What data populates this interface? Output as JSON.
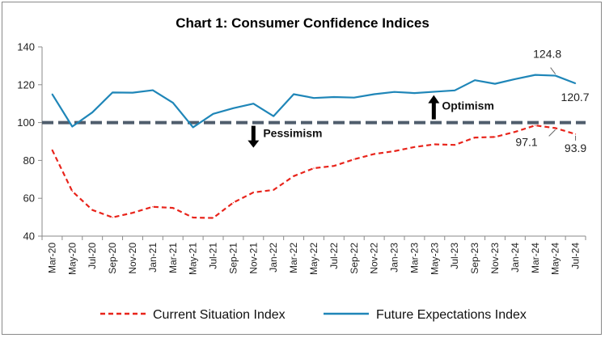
{
  "chart_data": {
    "type": "line",
    "title": "Chart 1: Consumer Confidence Indices",
    "xlabel": "",
    "ylabel": "",
    "ylim": [
      40,
      140
    ],
    "yticks": [
      40,
      60,
      80,
      100,
      120,
      140
    ],
    "grid": false,
    "legend_position": "bottom",
    "x": [
      "Mar-20",
      "May-20",
      "Jul-20",
      "Sep-20",
      "Nov-20",
      "Jan-21",
      "Mar-21",
      "May-21",
      "Jul-21",
      "Sep-21",
      "Nov-21",
      "Jan-22",
      "Mar-22",
      "May-22",
      "Jul-22",
      "Sep-22",
      "Nov-22",
      "Jan-23",
      "Mar-23",
      "May-23",
      "Jul-23",
      "Sep-23",
      "Nov-23",
      "Jan-24",
      "Mar-24",
      "May-24",
      "Jul-24"
    ],
    "series": [
      {
        "name": "Current Situation Index",
        "color": "#e8241b",
        "style": "dashed",
        "values": [
          85.6,
          63.7,
          53.8,
          49.9,
          52.3,
          55.5,
          54.9,
          49.8,
          49.6,
          57.7,
          63.1,
          64.4,
          71.7,
          75.9,
          77.1,
          80.6,
          83.4,
          84.9,
          87.1,
          88.5,
          88.2,
          92.1,
          92.4,
          95.1,
          98.5,
          97.1,
          93.9
        ]
      },
      {
        "name": "Future Expectations Index",
        "color": "#1f86b8",
        "style": "solid",
        "values": [
          115.1,
          97.9,
          105.4,
          115.9,
          115.8,
          117.1,
          110.5,
          97.5,
          104.6,
          107.6,
          110.0,
          103.4,
          115.0,
          113.0,
          113.5,
          113.2,
          115.0,
          116.2,
          115.6,
          116.3,
          117.0,
          122.4,
          120.5,
          123.0,
          125.2,
          124.8,
          120.7
        ]
      }
    ],
    "reference_line": {
      "y": 100,
      "color": "#4f5d6c"
    },
    "annotations": {
      "optimism": "Optimism",
      "pessimism": "Pessimism",
      "labels": [
        {
          "series": 1,
          "index": 25,
          "text": "124.8"
        },
        {
          "series": 1,
          "index": 26,
          "text": "120.7"
        },
        {
          "series": 0,
          "index": 25,
          "text": "97.1"
        },
        {
          "series": 0,
          "index": 26,
          "text": "93.9"
        }
      ]
    }
  }
}
